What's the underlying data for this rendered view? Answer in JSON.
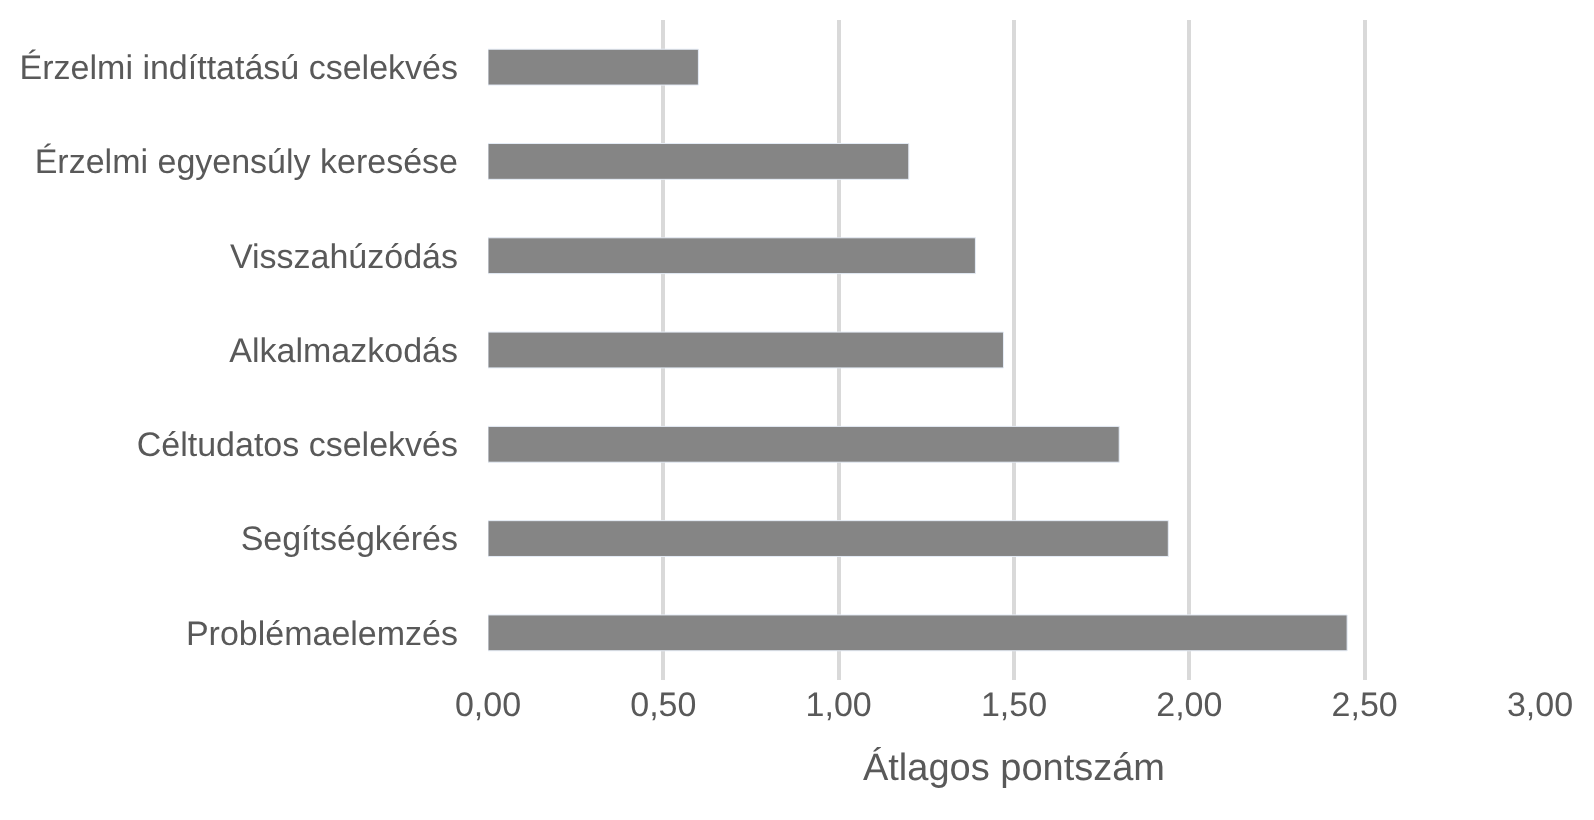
{
  "chart_data": {
    "type": "bar",
    "orientation": "horizontal",
    "xlabel": "Átlagos pontszám",
    "categories": [
      "Érzelmi indíttatású cselekvés",
      "Érzelmi egyensúly keresése",
      "Visszahúzódás",
      "Alkalmazkodás",
      "Céltudatos cselekvés",
      "Segítségkérés",
      "Problémaelemzés"
    ],
    "values": [
      0.6,
      1.2,
      1.39,
      1.47,
      1.8,
      1.94,
      2.45
    ],
    "color": "#858585",
    "xlim": [
      0,
      3
    ],
    "xticks": [
      {
        "value": 0,
        "label": "0,00"
      },
      {
        "value": 0.5,
        "label": "0,50"
      },
      {
        "value": 1,
        "label": "1,00"
      },
      {
        "value": 1.5,
        "label": "1,50"
      },
      {
        "value": 2,
        "label": "2,00"
      },
      {
        "value": 2.5,
        "label": "2,50"
      },
      {
        "value": 3,
        "label": "3,00"
      }
    ],
    "grid": "x",
    "legend": false
  }
}
